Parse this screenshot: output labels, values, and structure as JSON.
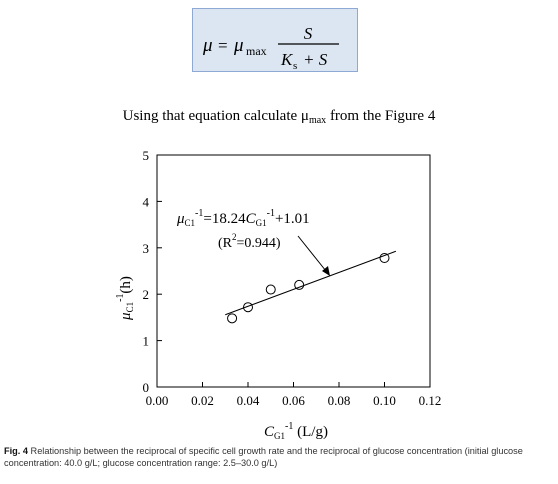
{
  "equation": {
    "lhs": "μ",
    "equals": "=",
    "mu": "μ",
    "mu_sub": "max",
    "numerator": "S",
    "denominator_k": "K",
    "denominator_k_sub": "s",
    "denominator_rest": "+ S"
  },
  "question": {
    "before": "Using that equation calculate ",
    "mu": "μ",
    "mu_sub": "max",
    "after": " from the Figure 4"
  },
  "chart_data": {
    "type": "scatter",
    "x": [
      0.033,
      0.04,
      0.05,
      0.0625,
      0.1
    ],
    "y": [
      1.48,
      1.72,
      2.1,
      2.2,
      2.78
    ],
    "xlim": [
      0,
      0.12
    ],
    "ylim": [
      0,
      5
    ],
    "x_ticks": [
      "0.00",
      "0.02",
      "0.04",
      "0.06",
      "0.08",
      "0.10",
      "0.12"
    ],
    "y_ticks": [
      "0",
      "1",
      "2",
      "3",
      "4",
      "5"
    ],
    "x_tick_values": [
      0,
      0.02,
      0.04,
      0.06,
      0.08,
      0.1,
      0.12
    ],
    "y_tick_values": [
      0,
      1,
      2,
      3,
      4,
      5
    ],
    "fit_line": {
      "slope": 18.24,
      "intercept": 1.01,
      "x_range": [
        0.03,
        0.105
      ]
    },
    "xlabel": {
      "base": "C",
      "sub": "G1",
      "sup": "-1",
      "unit": "(L/g)"
    },
    "ylabel": {
      "base": "μ",
      "sub": "C1",
      "sup": "-1",
      "unit": "(h)"
    },
    "annotation": {
      "line1_mu": "μ",
      "line1_mu_sub": "C1",
      "line1_sup": "-1",
      "line1_eq": "=18.24",
      "line1_c": "C",
      "line1_c_sub": "G1",
      "line1_c_sup": "-1",
      "line1_tail": "+1.01",
      "line2_pre": "(R",
      "line2_sup": "2",
      "line2_post": "=0.944)"
    },
    "grid": false
  },
  "caption": {
    "label": "Fig. 4",
    "text": "  Relationship between the reciprocal of specific cell growth rate and the reciprocal of glucose concentration (initial glucose concentration: 40.0 g/L; glucose concentration range: 2.5–30.0 g/L)"
  }
}
